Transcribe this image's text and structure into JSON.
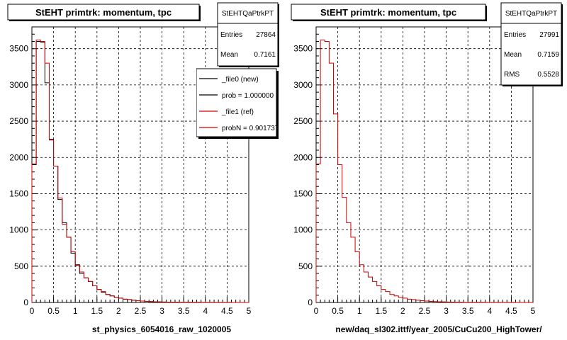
{
  "colors": {
    "new": "#000000",
    "ref": "#cc0000",
    "grid": "#000000",
    "frame": "#000000",
    "legend_shadow": "#000000"
  },
  "chart_data": [
    {
      "type": "step-histogram",
      "title": "StEHT primtrk: momentum, tpc",
      "xlabel": "st_physics_6054016_raw_1020005",
      "ylabel": "",
      "xlim": [
        0,
        5
      ],
      "ylim": [
        0,
        3800
      ],
      "xticks": [
        "0",
        "0.5",
        "1",
        "1.5",
        "2",
        "2.5",
        "3",
        "3.5",
        "4",
        "4.5",
        "5"
      ],
      "yticks": [
        "0",
        "500",
        "1000",
        "1500",
        "2000",
        "2500",
        "3000",
        "3500"
      ],
      "grid": true,
      "bin_width": 0.1,
      "stats": {
        "name": "StEHTQaPtrkPT",
        "entries_label": "Entries",
        "entries": "27864",
        "mean_label": "Mean",
        "mean": "0.7161"
      },
      "legend": [
        {
          "label": "_file0 (new)",
          "color": "#000000"
        },
        {
          "label": "prob = 1.000000",
          "color": "#000000"
        },
        {
          "label": "_file1 (ref)",
          "color": "#cc0000"
        },
        {
          "label": "probN = 0.901737",
          "color": "#cc0000"
        }
      ],
      "series": [
        {
          "name": "_file0 (new)",
          "color": "#000000",
          "values": [
            1900,
            3600,
            3590,
            3030,
            2250,
            1880,
            1420,
            1100,
            900,
            680,
            520,
            400,
            340,
            290,
            230,
            180,
            140,
            110,
            90,
            70,
            60,
            45,
            40,
            30,
            25,
            20,
            15,
            12,
            10,
            8,
            6,
            5,
            4,
            4,
            3,
            3,
            2,
            2,
            2,
            1,
            1,
            1,
            1,
            1,
            1,
            1,
            0,
            0,
            0,
            0
          ]
        },
        {
          "name": "_file1 (ref)",
          "color": "#cc0000",
          "values": [
            1910,
            3620,
            3600,
            3300,
            2240,
            1880,
            1440,
            1080,
            900,
            700,
            510,
            420,
            340,
            290,
            230,
            180,
            150,
            110,
            90,
            70,
            60,
            45,
            40,
            30,
            25,
            20,
            15,
            12,
            10,
            8,
            6,
            5,
            4,
            4,
            3,
            3,
            2,
            2,
            2,
            1,
            1,
            1,
            1,
            1,
            1,
            1,
            0,
            0,
            0,
            0
          ]
        }
      ]
    },
    {
      "type": "step-histogram",
      "title": "StEHT primtrk: momentum, tpc",
      "xlabel": "new/daq_sl302.ittf/year_2005/CuCu200_HighTower/",
      "ylabel": "",
      "xlim": [
        0,
        5
      ],
      "ylim": [
        0,
        3800
      ],
      "xticks": [
        "0",
        "0.5",
        "1",
        "1.5",
        "2",
        "2.5",
        "3",
        "3.5",
        "4",
        "4.5",
        "5"
      ],
      "yticks": [
        "0",
        "500",
        "1000",
        "1500",
        "2000",
        "2500",
        "3000",
        "3500"
      ],
      "grid": true,
      "bin_width": 0.1,
      "stats": {
        "name": "StEHTQaPtrkPT",
        "entries_label": "Entries",
        "entries": "27991",
        "mean_label": "Mean",
        "mean": "0.7159",
        "rms_label": "RMS",
        "rms": "0.5528"
      },
      "legend": [],
      "series": [
        {
          "name": "",
          "color": "#cc0000",
          "values": [
            1910,
            3620,
            3600,
            3300,
            2600,
            1900,
            1450,
            1100,
            900,
            700,
            520,
            420,
            350,
            290,
            230,
            180,
            150,
            110,
            90,
            70,
            60,
            45,
            40,
            30,
            25,
            20,
            15,
            12,
            10,
            8,
            6,
            5,
            4,
            4,
            3,
            3,
            2,
            2,
            2,
            1,
            1,
            1,
            1,
            1,
            1,
            1,
            0,
            0,
            0,
            0
          ]
        }
      ]
    }
  ]
}
